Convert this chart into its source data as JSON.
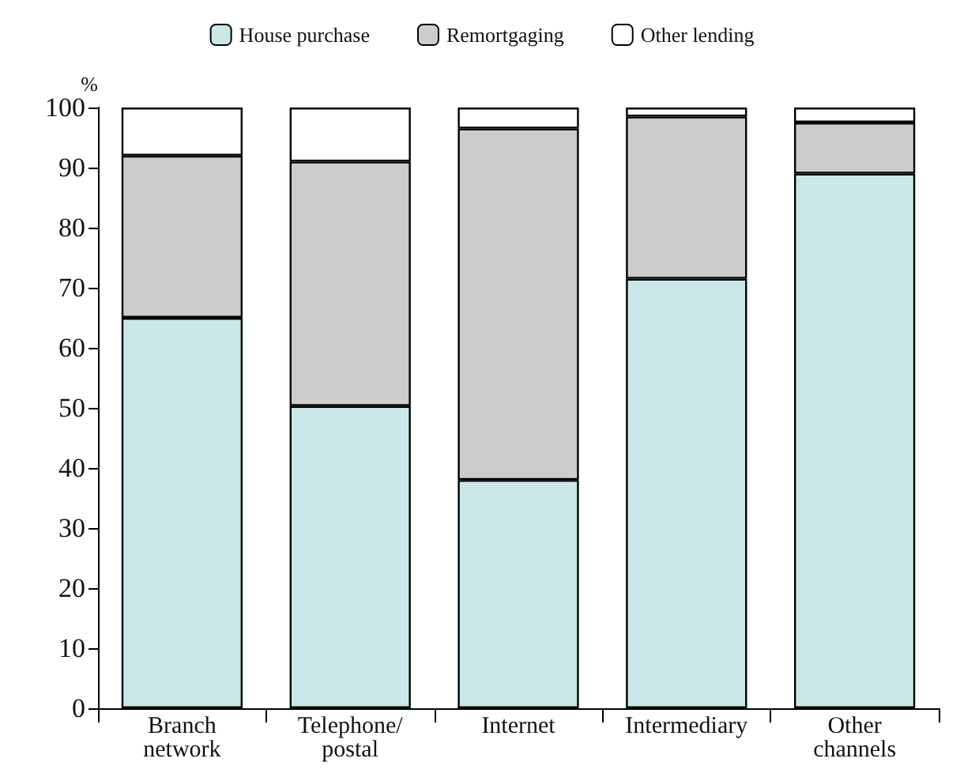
{
  "chart_data": {
    "type": "bar",
    "stacked": true,
    "ylabel": "%",
    "categories": [
      "Branch network",
      "Telephone/ postal",
      "Internet",
      "Intermediary",
      "Other channels"
    ],
    "series": [
      {
        "name": "House purchase",
        "color": "#cbe8e8",
        "values": [
          65,
          50.3,
          38,
          71.5,
          89
        ]
      },
      {
        "name": "Remortgaging",
        "color": "#cccccc",
        "values": [
          27,
          40.7,
          58.5,
          27,
          8.5
        ]
      },
      {
        "name": "Other lending",
        "color": "#ffffff",
        "values": [
          8,
          9,
          3.5,
          1.5,
          2.5
        ]
      }
    ],
    "ylim": [
      0,
      100
    ],
    "yticks": [
      0,
      10,
      20,
      30,
      40,
      50,
      60,
      70,
      80,
      90,
      100
    ],
    "grid": false,
    "legend": "top"
  }
}
